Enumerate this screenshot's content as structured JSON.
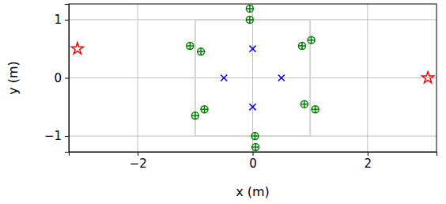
{
  "chart_data": {
    "type": "scatter",
    "x_label": "x (m)",
    "y_label": "y (m)",
    "xlim": [
      -3.2,
      3.2
    ],
    "ylim": [
      -1.27,
      1.27
    ],
    "xticks": [
      {
        "value": -2,
        "label": "−2"
      },
      0,
      2
    ],
    "yticks": [
      {
        "value": -1,
        "label": "−1"
      },
      0,
      1
    ],
    "grid": true,
    "series": [
      {
        "type": "line",
        "color": "#d3d3d3",
        "x": [
          -1,
          1,
          1,
          -1,
          -1
        ],
        "values": [
          -1,
          -1,
          1,
          1,
          -1
        ]
      },
      {
        "type": "scatter",
        "marker": "star",
        "color": "#ff0000",
        "x": [
          -3.05,
          3.05
        ],
        "values": [
          0.5,
          0
        ]
      },
      {
        "type": "scatter",
        "marker": "x",
        "color": "#0000ff",
        "x": [
          0,
          -0.5,
          0.5,
          0
        ],
        "values": [
          0.5,
          0,
          0,
          -0.5
        ]
      },
      {
        "type": "scatter",
        "marker": "circle-plus",
        "color": "#008000",
        "x": [
          -0.05,
          -0.05,
          -1.09,
          -0.9,
          0.86,
          1.02,
          -1.0,
          -0.84,
          0.9,
          1.09,
          0.04,
          0.05
        ],
        "values": [
          1.19,
          1.0,
          0.55,
          0.45,
          0.55,
          0.65,
          -0.65,
          -0.54,
          -0.45,
          -0.54,
          -1.0,
          -1.19
        ]
      }
    ]
  }
}
